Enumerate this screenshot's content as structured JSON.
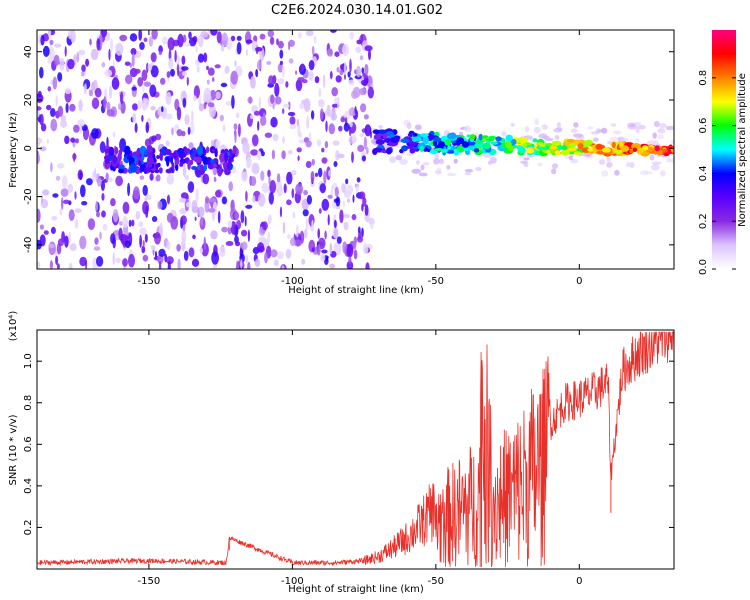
{
  "figure_title": "C2E6.2024.030.14.01.G02",
  "chart_data": [
    {
      "type": "heatmap",
      "xlabel": "Height of straight line (km)",
      "ylabel": "Frequency (Hz)",
      "xlim": [
        -189,
        33
      ],
      "ylim": [
        -50,
        49
      ],
      "xticks": [
        -150,
        -100,
        -50,
        0
      ],
      "yticks": [
        -40,
        -20,
        0,
        20,
        40
      ],
      "colorbar": {
        "label": "Normalized spectral amplitude",
        "range": [
          0,
          1
        ],
        "ticks": [
          "0.0",
          "0.2",
          "0.4",
          "0.6",
          "0.8"
        ],
        "colors": [
          "#ffffff",
          "#dcc4ff",
          "#8a2be2",
          "#5a00ff",
          "#0000ff",
          "#00ffff",
          "#00ff00",
          "#ffff00",
          "#ff8000",
          "#ff0000",
          "#ff0080"
        ]
      },
      "features": [
        {
          "name": "noise-region",
          "x_range": [
            -189,
            -72
          ],
          "freq_range": [
            -50,
            49
          ]
        },
        {
          "name": "signal-band-low",
          "x_range": [
            -165,
            -120
          ],
          "center_freq": -5,
          "peak_amplitude": 0.35
        },
        {
          "name": "signal-band-high",
          "x_range": [
            -72,
            33
          ],
          "center_freq": 0,
          "peak_amplitude": 1.0
        }
      ]
    },
    {
      "type": "line",
      "xlabel": "Height of straight line (km)",
      "ylabel": "SNR (10 * v/v)",
      "multiplier": "(x10⁴)",
      "xlim": [
        -189,
        33
      ],
      "ylim": [
        0,
        1.15
      ],
      "xticks": [
        -150,
        -100,
        -50,
        0
      ],
      "yticks": [
        "0.2",
        "0.4",
        "0.6",
        "0.8",
        "1.0"
      ],
      "color": "#e8302a",
      "series": [
        {
          "name": "SNR",
          "x": [
            -189,
            -150,
            -123,
            -122,
            -100,
            -85,
            -75,
            -70,
            -65,
            -60,
            -55,
            -50,
            -45,
            -40,
            -35,
            -34,
            -30,
            -25,
            -20,
            -15,
            -10,
            -5,
            0,
            5,
            10,
            11,
            15,
            20,
            25,
            30,
            33
          ],
          "y": [
            0.03,
            0.04,
            0.03,
            0.15,
            0.03,
            0.03,
            0.04,
            0.06,
            0.1,
            0.15,
            0.22,
            0.3,
            0.35,
            0.4,
            0.45,
            1.0,
            0.45,
            0.48,
            0.55,
            0.65,
            0.7,
            0.8,
            0.82,
            0.85,
            0.9,
            0.45,
            0.95,
            1.03,
            1.08,
            1.12,
            1.14
          ]
        }
      ]
    }
  ]
}
